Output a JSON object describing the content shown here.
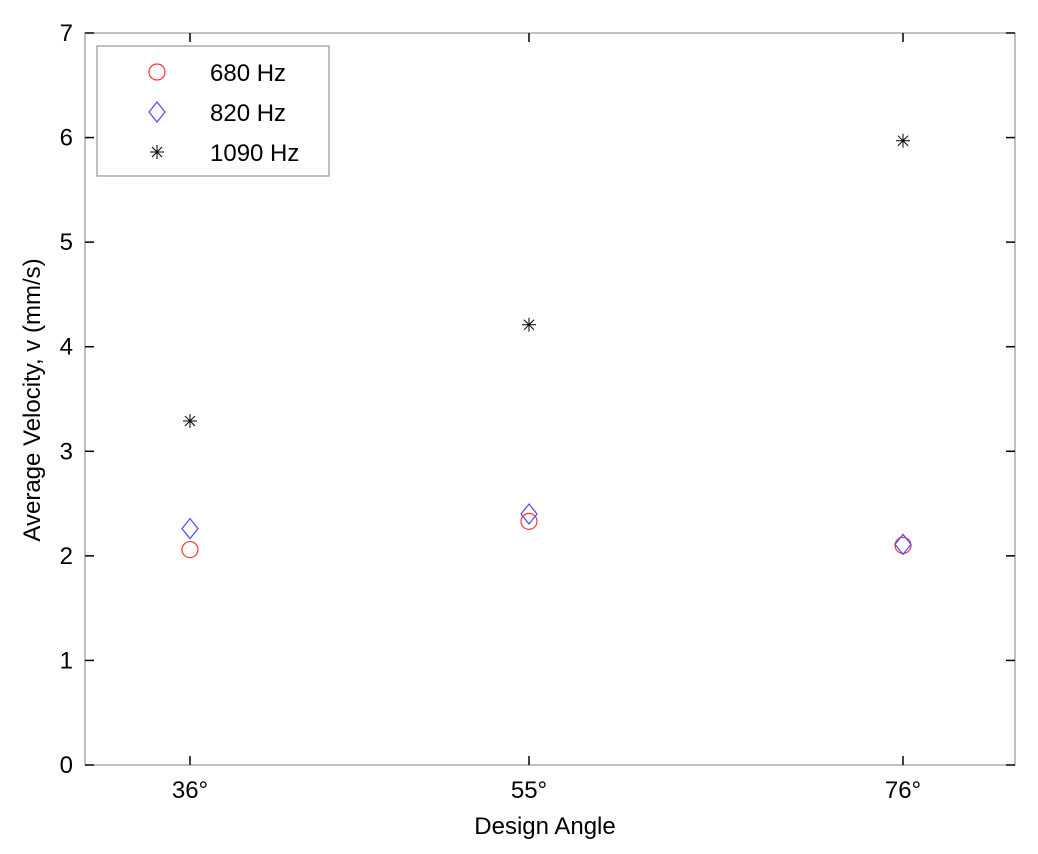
{
  "chart_data": {
    "type": "scatter",
    "title": "",
    "xlabel": "Design Angle",
    "ylabel": "Average Velocity, v (mm/s)",
    "categories": [
      "36°",
      "55°",
      "76°"
    ],
    "ylim": [
      0,
      7
    ],
    "yticks": [
      "0",
      "1",
      "2",
      "3",
      "4",
      "5",
      "6",
      "7"
    ],
    "grid": false,
    "legend_position": "top-left",
    "series": [
      {
        "name": "680 Hz",
        "marker": "circle",
        "color": "#ff3333",
        "values": [
          2.06,
          2.33,
          2.1
        ]
      },
      {
        "name": "820 Hz",
        "marker": "diamond",
        "color": "#4a4aff",
        "values": [
          2.26,
          2.4,
          2.11
        ]
      },
      {
        "name": "1090 Hz",
        "marker": "asterisk",
        "color": "#000000",
        "values": [
          3.29,
          4.21,
          5.97
        ]
      }
    ]
  }
}
